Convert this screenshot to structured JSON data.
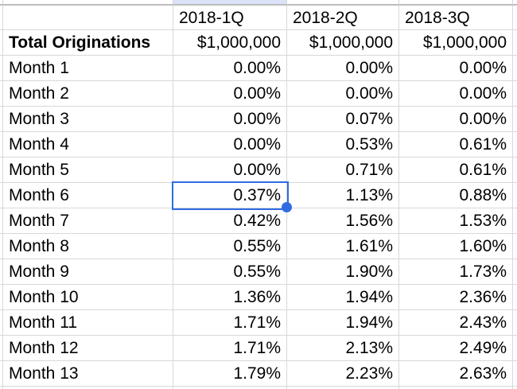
{
  "table": {
    "columns": [
      "2018-1Q",
      "2018-2Q",
      "2018-3Q"
    ],
    "total_row": {
      "label": "Total Originations",
      "values": [
        "$1,000,000",
        "$1,000,000",
        "$1,000,000"
      ]
    },
    "rows": [
      {
        "label": "Month 1",
        "values": [
          "0.00%",
          "0.00%",
          "0.00%"
        ]
      },
      {
        "label": "Month 2",
        "values": [
          "0.00%",
          "0.00%",
          "0.00%"
        ]
      },
      {
        "label": "Month 3",
        "values": [
          "0.00%",
          "0.07%",
          "0.00%"
        ]
      },
      {
        "label": "Month 4",
        "values": [
          "0.00%",
          "0.53%",
          "0.61%"
        ]
      },
      {
        "label": "Month 5",
        "values": [
          "0.00%",
          "0.71%",
          "0.61%"
        ]
      },
      {
        "label": "Month 6",
        "values": [
          "0.37%",
          "1.13%",
          "0.88%"
        ]
      },
      {
        "label": "Month 7",
        "values": [
          "0.42%",
          "1.56%",
          "1.53%"
        ]
      },
      {
        "label": "Month 8",
        "values": [
          "0.55%",
          "1.61%",
          "1.60%"
        ]
      },
      {
        "label": "Month 9",
        "values": [
          "0.55%",
          "1.90%",
          "1.73%"
        ]
      },
      {
        "label": "Month 10",
        "values": [
          "1.36%",
          "1.94%",
          "2.36%"
        ]
      },
      {
        "label": "Month 11",
        "values": [
          "1.71%",
          "1.94%",
          "2.43%"
        ]
      },
      {
        "label": "Month 12",
        "values": [
          "1.71%",
          "2.13%",
          "2.49%"
        ]
      },
      {
        "label": "Month 13",
        "values": [
          "1.79%",
          "2.23%",
          "2.63%"
        ]
      }
    ],
    "selection": {
      "row_label": "Month 6",
      "column": "2018-1Q",
      "value": "0.37%"
    },
    "colors": {
      "selection_blue": "#2f6be3",
      "column_highlight_blue": "#d9e2f6",
      "gridline_gray": "#d8d8d8",
      "header_divider_gray": "#bdbdbd",
      "text": "#000000"
    }
  }
}
